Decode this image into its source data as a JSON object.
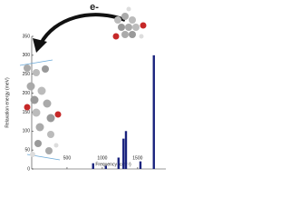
{
  "chart_data": {
    "type": "bar",
    "annotation": "e-",
    "x_label": "Frequency (cm⁻¹)",
    "y_label": "Relaxation energy (meV)",
    "x": [
      870,
      1050,
      1230,
      1300,
      1335,
      1540,
      1730
    ],
    "values": [
      15,
      8,
      30,
      80,
      100,
      20,
      300
    ],
    "color": "#1a237e",
    "xlim": [
      0,
      1900
    ],
    "xticks": [
      500,
      1000,
      1500
    ],
    "ylim": [
      0,
      350
    ],
    "yticks": [
      0,
      50,
      100,
      150,
      200,
      250,
      300,
      350
    ]
  }
}
